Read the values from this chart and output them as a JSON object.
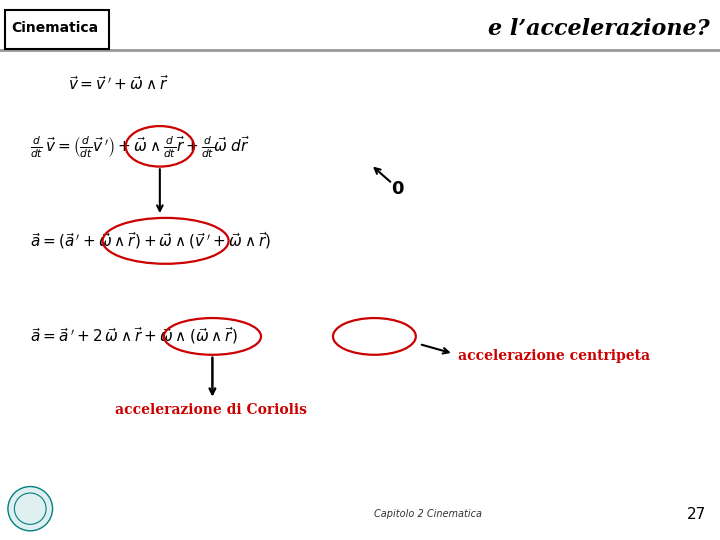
{
  "bg_color": "#ffffff",
  "header_label": "Cinematica",
  "title": "e l’accelerazione?",
  "line_color": "#999999",
  "red_color": "#cc0000",
  "circle_color": "#cc0000",
  "zero_label": "0",
  "label_centripeta": "accelerazione centripeta",
  "label_coriolis": "accelerazione di Coriolis",
  "footer_text": "Capitolo 2 Cinematica",
  "page_number": "27",
  "header_fontsize": 10,
  "title_fontsize": 16,
  "eq_fontsize": 11,
  "label_fontsize": 10,
  "footer_fontsize": 7,
  "page_fontsize": 11
}
